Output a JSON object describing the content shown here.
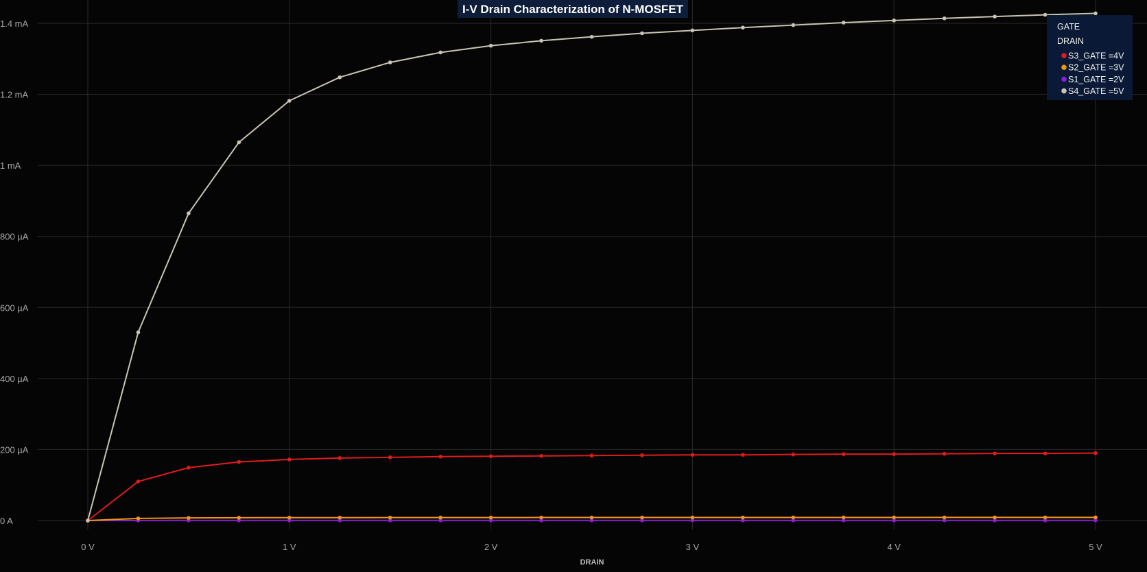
{
  "chart_data": {
    "type": "line",
    "title": "I-V Drain Characterization of N-MOSFET",
    "xlabel": "DRAIN",
    "ylabel": "",
    "xlim": [
      0,
      5
    ],
    "ylim": [
      0,
      0.0014
    ],
    "grid": true,
    "x_ticks": [
      "0 V",
      "1 V",
      "2 V",
      "3 V",
      "4 V",
      "5 V"
    ],
    "y_ticks": [
      "0 A",
      "200 µA",
      "400 µA",
      "600 µA",
      "800 µA",
      "1 mA",
      "1.2 mA",
      "1.4 mA"
    ],
    "legend": {
      "placement": "top-right",
      "header_lines": [
        "GATE",
        "DRAIN"
      ],
      "entries": [
        "S3_GATE =4V",
        "S2_GATE =3V",
        "S1_GATE =2V",
        "S4_GATE =5V"
      ]
    },
    "x": [
      0,
      0.25,
      0.5,
      0.75,
      1.0,
      1.25,
      1.5,
      1.75,
      2.0,
      2.25,
      2.5,
      2.75,
      3.0,
      3.25,
      3.5,
      3.75,
      4.0,
      4.25,
      4.5,
      4.75,
      5.0
    ],
    "series": [
      {
        "name": "S3_GATE =4V",
        "color": "#e01b1b",
        "values": [
          0,
          0.00011,
          0.000149,
          0.000165,
          0.000172,
          0.000176,
          0.000178,
          0.00018,
          0.000181,
          0.000182,
          0.000183,
          0.000184,
          0.000185,
          0.000185,
          0.000186,
          0.000187,
          0.000187,
          0.000188,
          0.000189,
          0.000189,
          0.00019
        ]
      },
      {
        "name": "S2_GATE =3V",
        "color": "#f0960f",
        "values": [
          0,
          6e-06,
          7.5e-06,
          8e-06,
          8.2e-06,
          8.3e-06,
          8.4e-06,
          8.5e-06,
          8.5e-06,
          8.6e-06,
          8.6e-06,
          8.7e-06,
          8.7e-06,
          8.7e-06,
          8.8e-06,
          8.8e-06,
          8.8e-06,
          8.9e-06,
          8.9e-06,
          8.9e-06,
          9e-06
        ]
      },
      {
        "name": "S1_GATE =2V",
        "color": "#8a1fe0",
        "values": [
          0,
          3e-07,
          4e-07,
          4e-07,
          5e-07,
          5e-07,
          5e-07,
          5e-07,
          5e-07,
          5e-07,
          5e-07,
          5e-07,
          6e-07,
          6e-07,
          6e-07,
          6e-07,
          6e-07,
          6e-07,
          6e-07,
          6e-07,
          6e-07
        ]
      },
      {
        "name": "S4_GATE =5V",
        "color": "#c9c4b4",
        "values": [
          0,
          0.00053,
          0.000865,
          0.001065,
          0.001182,
          0.001248,
          0.00129,
          0.001318,
          0.001337,
          0.001351,
          0.001362,
          0.001372,
          0.00138,
          0.001388,
          0.001395,
          0.001402,
          0.001408,
          0.001414,
          0.001419,
          0.001424,
          0.001428
        ]
      }
    ]
  }
}
